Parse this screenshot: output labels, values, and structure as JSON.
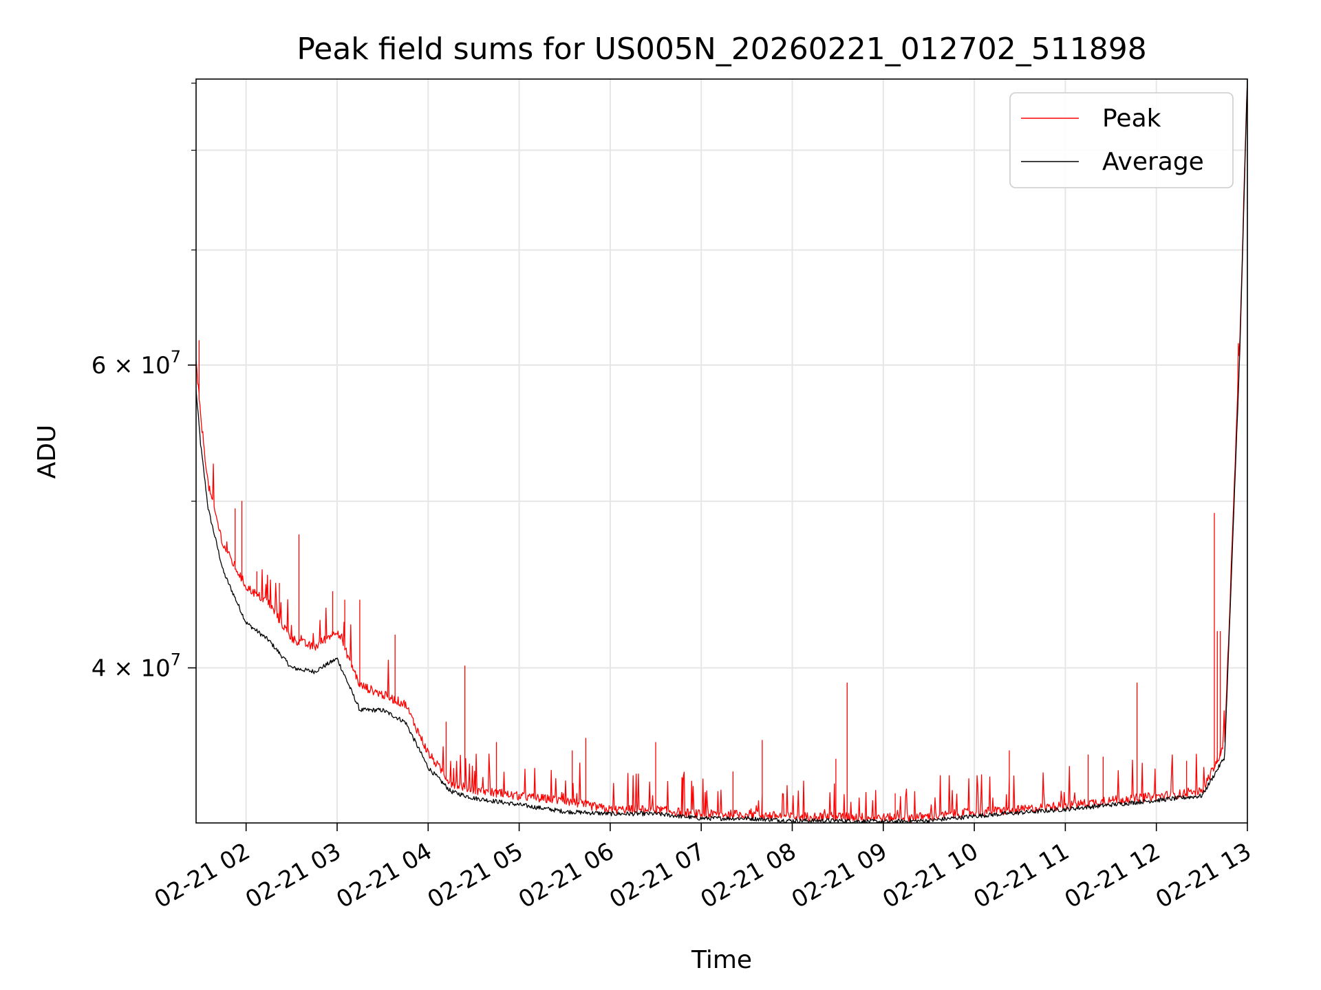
{
  "chart_data": {
    "type": "line",
    "title": "Peak field sums for US005N_20260221_012702_511898",
    "xlabel": "Time",
    "ylabel": "ADU",
    "x_range": [
      "2026-02-21 01:27:02",
      "2026-02-21 13:00:00"
    ],
    "y_scale": "log",
    "ylim": [
      32500000,
      88000000
    ],
    "x_ticks": [
      {
        "value": "2026-02-21 02:00",
        "label": "02-21 02"
      },
      {
        "value": "2026-02-21 03:00",
        "label": "02-21 03"
      },
      {
        "value": "2026-02-21 04:00",
        "label": "02-21 04"
      },
      {
        "value": "2026-02-21 05:00",
        "label": "02-21 05"
      },
      {
        "value": "2026-02-21 06:00",
        "label": "02-21 06"
      },
      {
        "value": "2026-02-21 07:00",
        "label": "02-21 07"
      },
      {
        "value": "2026-02-21 08:00",
        "label": "02-21 08"
      },
      {
        "value": "2026-02-21 09:00",
        "label": "02-21 09"
      },
      {
        "value": "2026-02-21 10:00",
        "label": "02-21 10"
      },
      {
        "value": "2026-02-21 11:00",
        "label": "02-21 11"
      },
      {
        "value": "2026-02-21 12:00",
        "label": "02-21 12"
      },
      {
        "value": "2026-02-21 13:00",
        "label": "02-21 13"
      }
    ],
    "y_major_ticks": [
      {
        "value": 40000000,
        "label": "4 × 10^7",
        "mantissa": "4 × 10",
        "exponent": "7"
      },
      {
        "value": 60000000,
        "label": "6 × 10^7",
        "mantissa": "6 × 10",
        "exponent": "7"
      }
    ],
    "y_minor_ticks": [
      50000000,
      70000000,
      80000000
    ],
    "grid": true,
    "legend": {
      "placement": "top-right",
      "entries": [
        "Peak",
        "Average"
      ]
    },
    "series": [
      {
        "name": "Peak",
        "color": "#ff0000",
        "x": [
          "2026-02-21 01:27:02",
          "2026-02-21 01:30",
          "2026-02-21 01:35",
          "2026-02-21 01:45",
          "2026-02-21 02:00",
          "2026-02-21 02:15",
          "2026-02-21 02:30",
          "2026-02-21 02:45",
          "2026-02-21 03:00",
          "2026-02-21 03:15",
          "2026-02-21 03:30",
          "2026-02-21 03:45",
          "2026-02-21 04:00",
          "2026-02-21 04:15",
          "2026-02-21 04:30",
          "2026-02-21 05:00",
          "2026-02-21 05:30",
          "2026-02-21 06:00",
          "2026-02-21 06:30",
          "2026-02-21 07:00",
          "2026-02-21 07:30",
          "2026-02-21 08:00",
          "2026-02-21 08:30",
          "2026-02-21 09:00",
          "2026-02-21 09:30",
          "2026-02-21 10:00",
          "2026-02-21 10:30",
          "2026-02-21 11:00",
          "2026-02-21 11:30",
          "2026-02-21 12:00",
          "2026-02-21 12:30",
          "2026-02-21 12:45",
          "2026-02-21 12:55",
          "2026-02-21 13:00"
        ],
        "y": [
          60000000,
          56000000,
          51000000,
          47000000,
          44500000,
          43500000,
          41500000,
          41000000,
          42000000,
          39000000,
          38500000,
          38000000,
          35600000,
          34200000,
          33900000,
          33600000,
          33400000,
          33000000,
          33000000,
          32800000,
          32800000,
          32700000,
          32700000,
          32650000,
          32700000,
          32900000,
          33000000,
          33200000,
          33400000,
          33600000,
          33800000,
          36000000,
          62000000,
          88000000
        ],
        "spikes": [
          {
            "x": "2026-02-21 01:29",
            "y": 62000000
          },
          {
            "x": "2026-02-21 01:53",
            "y": 49500000
          },
          {
            "x": "2026-02-21 01:57",
            "y": 50000000
          },
          {
            "x": "2026-02-21 02:07",
            "y": 45500000
          },
          {
            "x": "2026-02-21 02:22",
            "y": 44800000
          },
          {
            "x": "2026-02-21 02:35",
            "y": 47800000
          },
          {
            "x": "2026-02-21 02:57",
            "y": 44300000
          },
          {
            "x": "2026-02-21 03:05",
            "y": 43800000
          },
          {
            "x": "2026-02-21 03:15",
            "y": 43800000
          },
          {
            "x": "2026-02-21 03:38",
            "y": 41800000
          },
          {
            "x": "2026-02-21 04:12",
            "y": 37200000
          },
          {
            "x": "2026-02-21 04:24",
            "y": 40100000
          },
          {
            "x": "2026-02-21 04:45",
            "y": 36200000
          },
          {
            "x": "2026-02-21 05:35",
            "y": 35800000
          },
          {
            "x": "2026-02-21 05:44",
            "y": 36400000
          },
          {
            "x": "2026-02-21 06:30",
            "y": 36200000
          },
          {
            "x": "2026-02-21 06:48",
            "y": 34500000
          },
          {
            "x": "2026-02-21 07:21",
            "y": 34800000
          },
          {
            "x": "2026-02-21 07:40",
            "y": 36300000
          },
          {
            "x": "2026-02-21 08:29",
            "y": 35400000
          },
          {
            "x": "2026-02-21 08:36",
            "y": 39200000
          },
          {
            "x": "2026-02-21 09:08",
            "y": 33800000
          },
          {
            "x": "2026-02-21 10:23",
            "y": 35800000
          },
          {
            "x": "2026-02-21 11:15",
            "y": 35600000
          },
          {
            "x": "2026-02-21 11:25",
            "y": 35500000
          },
          {
            "x": "2026-02-21 11:47",
            "y": 39200000
          },
          {
            "x": "2026-02-21 12:20",
            "y": 35300000
          },
          {
            "x": "2026-02-21 12:38",
            "y": 49200000
          },
          {
            "x": "2026-02-21 12:40",
            "y": 42000000
          },
          {
            "x": "2026-02-21 12:42",
            "y": 42000000
          }
        ]
      },
      {
        "name": "Average",
        "color": "#000000",
        "x": [
          "2026-02-21 01:27:02",
          "2026-02-21 01:30",
          "2026-02-21 01:35",
          "2026-02-21 01:45",
          "2026-02-21 02:00",
          "2026-02-21 02:15",
          "2026-02-21 02:30",
          "2026-02-21 02:45",
          "2026-02-21 03:00",
          "2026-02-21 03:15",
          "2026-02-21 03:30",
          "2026-02-21 03:45",
          "2026-02-21 04:00",
          "2026-02-21 04:15",
          "2026-02-21 04:30",
          "2026-02-21 05:00",
          "2026-02-21 05:30",
          "2026-02-21 06:00",
          "2026-02-21 06:30",
          "2026-02-21 07:00",
          "2026-02-21 07:30",
          "2026-02-21 08:00",
          "2026-02-21 08:30",
          "2026-02-21 09:00",
          "2026-02-21 09:30",
          "2026-02-21 10:00",
          "2026-02-21 10:30",
          "2026-02-21 11:00",
          "2026-02-21 11:30",
          "2026-02-21 12:00",
          "2026-02-21 12:30",
          "2026-02-21 12:45",
          "2026-02-21 12:55",
          "2026-02-21 13:00"
        ],
        "y": [
          58000000,
          54000000,
          49500000,
          45500000,
          42500000,
          41500000,
          40000000,
          39800000,
          40500000,
          37800000,
          37800000,
          37200000,
          35000000,
          33900000,
          33600000,
          33300000,
          33000000,
          32900000,
          32900000,
          32700000,
          32700000,
          32600000,
          32600000,
          32550000,
          32600000,
          32800000,
          32950000,
          33100000,
          33300000,
          33500000,
          33700000,
          35500000,
          61000000,
          88000000
        ]
      }
    ]
  }
}
